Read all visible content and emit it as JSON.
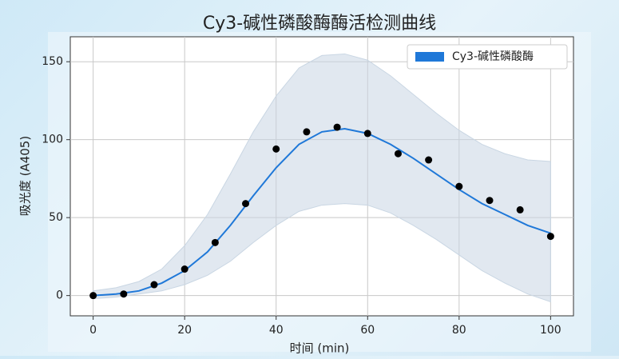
{
  "chart_data": {
    "type": "line",
    "title": "Cy3-碱性磷酸酶酶活检测曲线",
    "xlabel": "时间 (min)",
    "ylabel": "吸光度 (A405)",
    "xlim": [
      -5,
      105
    ],
    "ylim": [
      -13,
      166
    ],
    "xticks": [
      0,
      20,
      40,
      60,
      80,
      100
    ],
    "yticks": [
      0,
      50,
      100,
      150
    ],
    "grid": true,
    "legend": "upper right",
    "series": [
      {
        "name": "Cy3-碱性磷酸酶",
        "color": "#1f78d8",
        "band_color": "#c9d6e3",
        "x": [
          0,
          5,
          10,
          15,
          20,
          25,
          30,
          35,
          40,
          45,
          50,
          55,
          60,
          65,
          70,
          75,
          80,
          85,
          90,
          95,
          100
        ],
        "values": [
          0,
          1,
          3,
          8,
          16,
          28,
          45,
          64,
          82,
          97,
          105,
          107,
          104,
          97,
          88,
          78,
          68,
          59,
          52,
          45,
          40
        ],
        "upper": [
          3,
          5,
          9,
          17,
          32,
          52,
          78,
          105,
          128,
          146,
          154,
          155,
          151,
          141,
          129,
          117,
          106,
          97,
          91,
          87,
          86
        ],
        "lower": [
          -2,
          -1,
          1,
          3,
          7,
          13,
          22,
          34,
          45,
          54,
          58,
          59,
          58,
          53,
          45,
          36,
          26,
          16,
          8,
          1,
          -4
        ]
      }
    ],
    "points": {
      "color": "#000000",
      "x": [
        0,
        6.67,
        13.33,
        20,
        26.67,
        33.33,
        40,
        46.67,
        53.33,
        60,
        66.67,
        73.33,
        80,
        86.67,
        93.33,
        100
      ],
      "values": [
        0,
        1,
        7,
        17,
        34,
        59,
        94,
        105,
        108,
        104,
        91,
        87,
        70,
        61,
        55,
        38
      ]
    }
  }
}
